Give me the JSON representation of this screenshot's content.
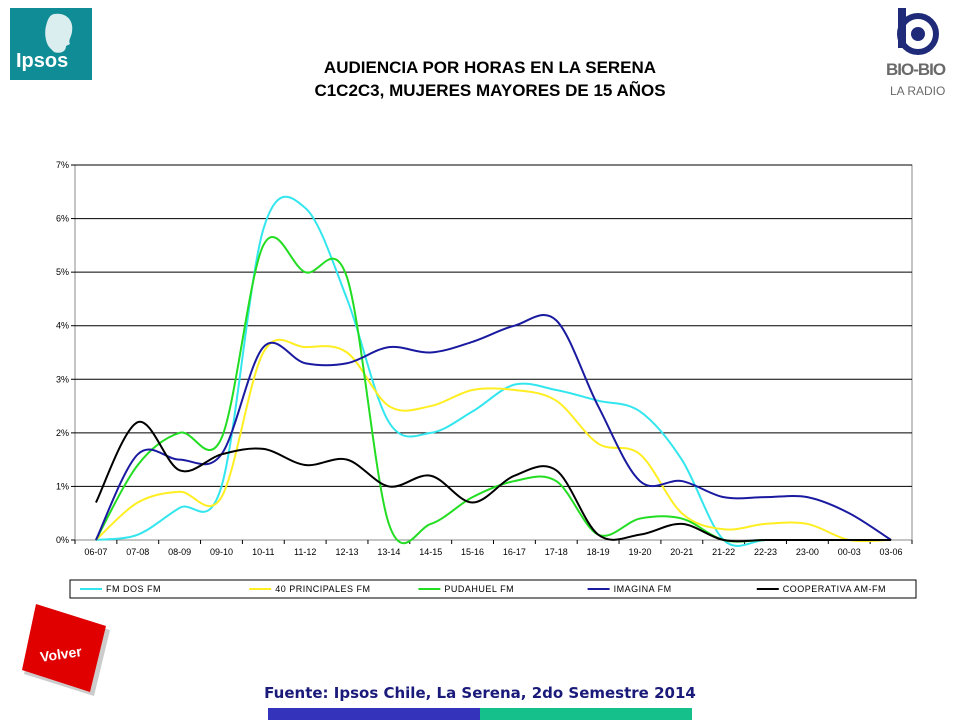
{
  "header": {
    "title_line1": "AUDIENCIA POR HORAS EN LA SERENA",
    "title_line2": "C1C2C3, MUJERES MAYORES DE 15 AÑOS"
  },
  "logos": {
    "ipsos": "Ipsos",
    "biobio_name": "BIO-BIO",
    "biobio_sub": "LA RADIO"
  },
  "nav": {
    "volver_label": "Volver"
  },
  "footer": {
    "source": "Fuente: Ipsos Chile, La Serena, 2do Semestre 2014"
  },
  "chart_data": {
    "type": "line",
    "title": "",
    "xlabel": "",
    "ylabel": "",
    "ylim": [
      0,
      7
    ],
    "yticks": [
      "0%",
      "1%",
      "2%",
      "3%",
      "4%",
      "5%",
      "6%",
      "7%"
    ],
    "grid": true,
    "legend_position": "bottom",
    "categories": [
      "06-07",
      "07-08",
      "08-09",
      "09-10",
      "10-11",
      "11-12",
      "12-13",
      "13-14",
      "14-15",
      "15-16",
      "16-17",
      "17-18",
      "18-19",
      "19-20",
      "20-21",
      "21-22",
      "22-23",
      "23-00",
      "00-03",
      "03-06"
    ],
    "series": [
      {
        "name": "FM DOS FM",
        "color": "#33e6ee",
        "values": [
          0.0,
          0.1,
          0.6,
          1.0,
          5.8,
          6.2,
          4.5,
          2.2,
          2.0,
          2.4,
          2.9,
          2.8,
          2.6,
          2.4,
          1.5,
          0.0,
          0.0,
          0.0,
          0.0,
          0.0
        ]
      },
      {
        "name": "40 PRINCIPALES FM",
        "color": "#ffee22",
        "values": [
          0.0,
          0.7,
          0.9,
          0.8,
          3.5,
          3.6,
          3.5,
          2.5,
          2.5,
          2.8,
          2.8,
          2.6,
          1.8,
          1.6,
          0.5,
          0.2,
          0.3,
          0.3,
          0.0,
          0.0
        ]
      },
      {
        "name": "PUDAHUEL FM",
        "color": "#22dd22",
        "values": [
          0.0,
          1.4,
          2.0,
          1.9,
          5.5,
          5.0,
          4.9,
          0.3,
          0.3,
          0.8,
          1.1,
          1.1,
          0.1,
          0.4,
          0.4,
          0.0,
          0.0,
          0.0,
          0.0,
          0.0
        ]
      },
      {
        "name": "IMAGINA FM",
        "color": "#1a1aa0",
        "values": [
          0.0,
          1.6,
          1.5,
          1.6,
          3.6,
          3.3,
          3.3,
          3.6,
          3.5,
          3.7,
          4.0,
          4.1,
          2.5,
          1.1,
          1.1,
          0.8,
          0.8,
          0.8,
          0.5,
          0.0
        ]
      },
      {
        "name": "COOPERATIVA AM-FM",
        "color": "#000000",
        "values": [
          0.7,
          2.2,
          1.3,
          1.6,
          1.7,
          1.4,
          1.5,
          1.0,
          1.2,
          0.7,
          1.2,
          1.3,
          0.1,
          0.1,
          0.3,
          0.0,
          0.0,
          0.0,
          0.0,
          0.0
        ]
      }
    ]
  }
}
